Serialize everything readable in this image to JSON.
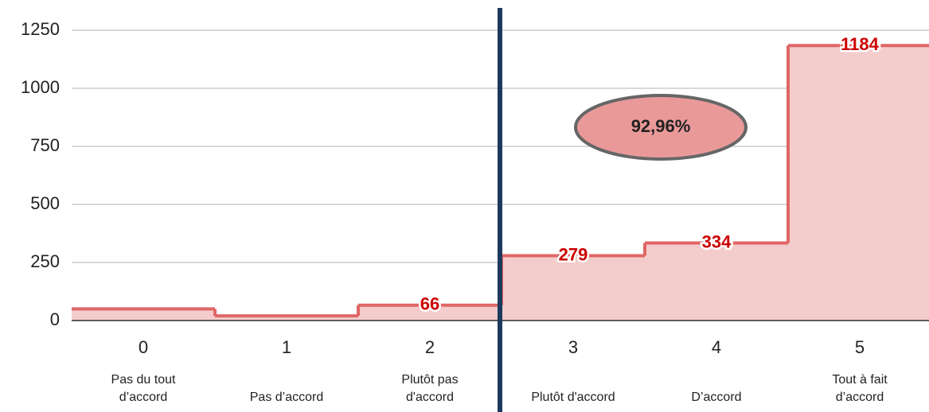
{
  "chart_data": {
    "type": "step",
    "categories": [
      "0",
      "1",
      "2",
      "3",
      "4",
      "5"
    ],
    "sublabels": [
      [
        "Pas du tout",
        "d’accord"
      ],
      [
        "Pas d’accord"
      ],
      [
        "Plutôt pas",
        "d'accord"
      ],
      [
        "Plutôt d'accord"
      ],
      [
        "D’accord"
      ],
      [
        "Tout à fait",
        "d’accord"
      ]
    ],
    "values": [
      50,
      20,
      66,
      279,
      334,
      1184
    ],
    "value_labels": [
      null,
      null,
      "66",
      "279",
      "334",
      "1184"
    ],
    "color": "#e06666",
    "fill": "#f4cccc",
    "label_color": "#cc0000",
    "ylim": [
      0,
      1250
    ],
    "yticks": [
      0,
      250,
      500,
      750,
      1000,
      1250
    ],
    "grid": true,
    "annotation": "92,96%"
  }
}
